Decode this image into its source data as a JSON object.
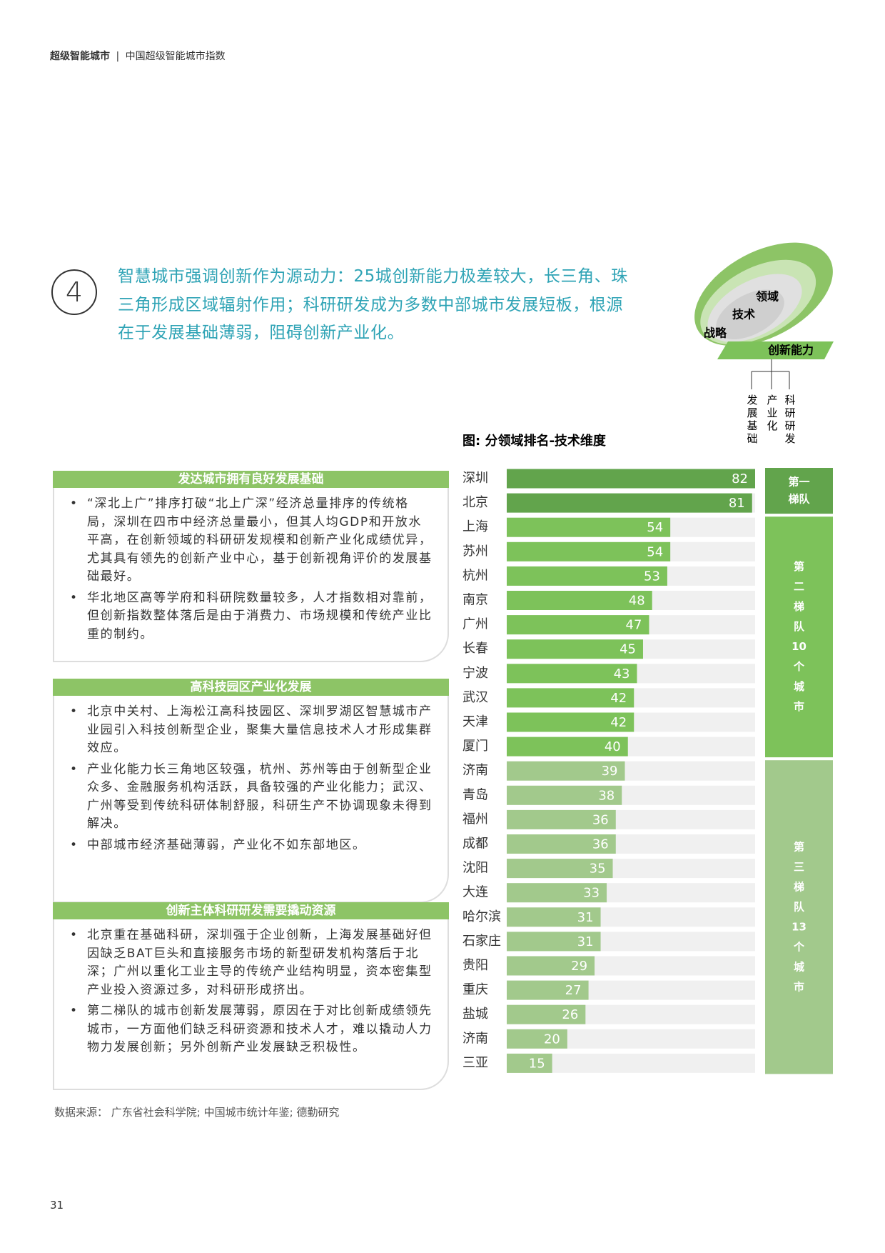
{
  "header": {
    "title": "超级智能城市",
    "separator": "|",
    "subtitle": "中国超级智能城市指数"
  },
  "headline": {
    "number": "4",
    "text": "智慧城市强调创新作为源动力：25城创新能力极差较大，长三角、珠三角形成区域辐射作用；科研研发成为多数中部城市发展短板，根源在于发展基础薄弱，阻碍创新产业化。"
  },
  "diagram": {
    "rings": [
      "领域",
      "技术",
      "战略"
    ],
    "band": "创新能力",
    "branches": [
      "发展基础",
      "产业化",
      "科研研发"
    ]
  },
  "sections": [
    {
      "title": "发达城市拥有良好发展基础",
      "bullets": [
        "“深北上广”排序打破“北上广深”经济总量排序的传统格局，深圳在四市中经济总量最小，但其人均GDP和开放水平高，在创新领域的科研研发规模和创新产业化成绩优异，尤其具有领先的创新产业中心，基于创新视角评价的发展基础最好。",
        "华北地区高等学府和科研院数量较多，人才指数相对靠前，但创新指数整体落后是由于消费力、市场规模和传统产业比重的制约。"
      ]
    },
    {
      "title": "高科技园区产业化发展",
      "bullets": [
        "北京中关村、上海松江高科技园区、深圳罗湖区智慧城市产业园引入科技创新型企业，聚集大量信息技术人才形成集群效应。",
        "产业化能力长三角地区较强，杭州、苏州等由于创新型企业众多、金融服务机构活跃，具备较强的产业化能力；武汉、广州等受到传统科研体制舒服，科研生产不协调现象未得到解决。",
        "中部城市经济基础薄弱，产业化不如东部地区。"
      ]
    },
    {
      "title": "创新主体科研研发需要撬动资源",
      "bullets": [
        "北京重在基础科研，深圳强于企业创新，上海发展基础好但因缺乏BAT巨头和直接服务市场的新型研发机构落后于北深；广州以重化工业主导的传统产业结构明显，资本密集型产业投入资源过多，对科研形成挤出。",
        "第二梯队的城市创新发展薄弱，原因在于对比创新成绩领先城市，一方面他们缺乏科研资源和技术人才，难以撬动人力物力发展创新；另外创新产业发展缺乏积极性。"
      ]
    }
  ],
  "chart_data": {
    "type": "bar",
    "title": "图: 分领域排名-技术维度",
    "tiers": [
      {
        "label": [
          "第一",
          "梯队"
        ],
        "color": "#62a44c",
        "categories": [
          "深圳",
          "北京"
        ],
        "values": [
          82,
          81
        ]
      },
      {
        "label": [
          "第",
          "二",
          "梯",
          "队",
          "10",
          "个",
          "城",
          "市"
        ],
        "color": "#7dc25a",
        "categories": [
          "上海",
          "苏州",
          "杭州",
          "南京",
          "广州",
          "长春",
          "宁波",
          "武汉",
          "天津",
          "厦门"
        ],
        "values": [
          54,
          54,
          53,
          48,
          47,
          45,
          43,
          42,
          42,
          40
        ]
      },
      {
        "label": [
          "第",
          "三",
          "梯",
          "队",
          "13",
          "个",
          "城",
          "市"
        ],
        "color": "#a2c98c",
        "categories": [
          "济南",
          "青岛",
          "福州",
          "成都",
          "沈阳",
          "大连",
          "哈尔滨",
          "石家庄",
          "贵阳",
          "重庆",
          "盐城",
          "济南",
          "三亚"
        ],
        "values": [
          39,
          38,
          36,
          36,
          35,
          33,
          31,
          31,
          29,
          27,
          26,
          20,
          15
        ]
      }
    ]
  },
  "source": "数据来源： 广东省社会科学院; 中国城市统计年鉴; 德勤研究",
  "page_number": "31"
}
